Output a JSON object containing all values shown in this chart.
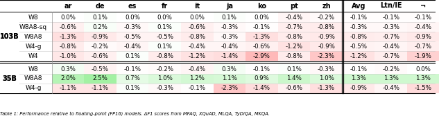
{
  "col_headers": [
    "ar",
    "de",
    "es",
    "fr",
    "it",
    "ja",
    "ko",
    "pt",
    "zh",
    "Avg",
    "Ltn/IE",
    "¬"
  ],
  "groups": [
    {
      "group_label": "103B",
      "rows": [
        {
          "label": "W8",
          "values": [
            0.0,
            0.1,
            0.0,
            0.0,
            0.0,
            0.1,
            0.0,
            -0.4,
            -0.2,
            -0.1,
            -0.1,
            -0.1
          ]
        },
        {
          "label": "W8A8-sq",
          "values": [
            -0.6,
            0.2,
            -0.3,
            0.1,
            -0.6,
            -0.3,
            -0.1,
            -0.7,
            -0.8,
            -0.3,
            -0.3,
            -0.4
          ]
        },
        {
          "label": "W8A8",
          "values": [
            -1.3,
            -0.9,
            -0.5,
            -0.5,
            -0.8,
            -0.3,
            -1.3,
            -0.8,
            -0.9,
            -0.8,
            -0.7,
            -0.9
          ]
        },
        {
          "label": "W4-g",
          "values": [
            -0.8,
            -0.2,
            -0.4,
            0.1,
            -0.4,
            -0.4,
            -0.6,
            -1.2,
            -0.9,
            -0.5,
            -0.4,
            -0.7
          ]
        },
        {
          "label": "W4",
          "values": [
            -1.0,
            -0.6,
            0.1,
            -0.8,
            -1.2,
            -1.4,
            -2.9,
            -0.8,
            -2.3,
            -1.2,
            -0.7,
            -1.9
          ]
        }
      ]
    },
    {
      "group_label": "35B",
      "rows": [
        {
          "label": "W8",
          "values": [
            0.3,
            -0.5,
            -0.1,
            -0.2,
            -0.4,
            0.3,
            -0.1,
            0.1,
            -0.3,
            -0.1,
            -0.2,
            0.0
          ]
        },
        {
          "label": "W8A8",
          "values": [
            2.0,
            2.5,
            0.7,
            1.0,
            1.2,
            1.1,
            0.9,
            1.4,
            1.0,
            1.3,
            1.3,
            1.3
          ]
        },
        {
          "label": "W4-g",
          "values": [
            -1.1,
            -1.1,
            0.1,
            -0.3,
            -0.1,
            -2.3,
            -1.4,
            -0.6,
            -1.3,
            -0.9,
            -0.4,
            -1.5
          ]
        }
      ]
    }
  ],
  "caption": "Table 1: Performance relative to floating-point (FP16) models. ΔF1 scores from MFAQ, XQuAD, MLQA, TyDiQA, MKQA."
}
